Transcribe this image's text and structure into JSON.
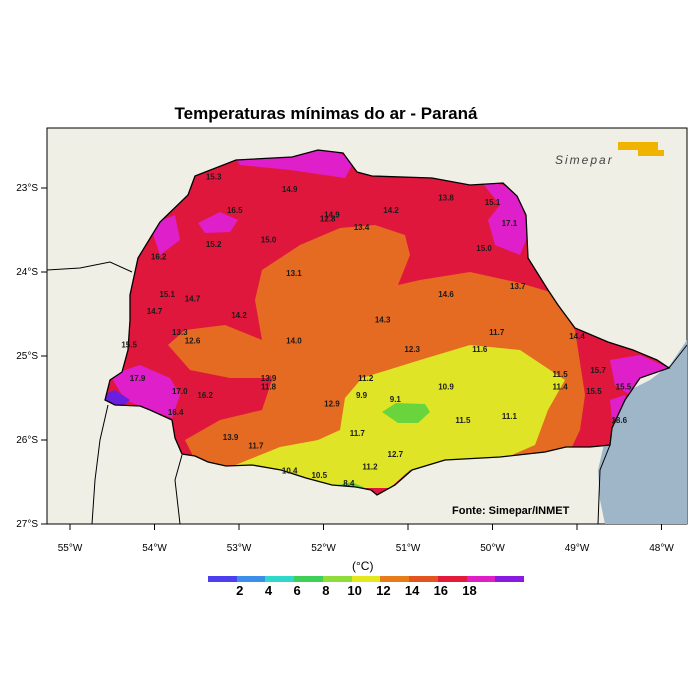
{
  "title": "Temperaturas mínimas do ar - Paraná",
  "brand": "Simepar",
  "source": "Fonte: Simepar/INMET",
  "unit": "(°C)",
  "lon_labels": [
    "55°W",
    "54°W",
    "53°W",
    "52°W",
    "51°W",
    "50°W",
    "49°W",
    "48°W"
  ],
  "lat_labels": [
    "23°S",
    "24°S",
    "25°S",
    "26°S",
    "27°S"
  ],
  "colorbar": {
    "colors": [
      "#4b3ff0",
      "#3c8fe8",
      "#2fd8c8",
      "#3fd05a",
      "#8fdc3a",
      "#e4e81e",
      "#e67c1a",
      "#e3541e",
      "#e31a3a",
      "#e01ec8",
      "#8a1ae0"
    ],
    "labels": [
      "2",
      "4",
      "6",
      "8",
      "10",
      "12",
      "14",
      "16",
      "18"
    ]
  },
  "colors": {
    "red": "#e0173d",
    "orange": "#e56a22",
    "yellow": "#dfe526",
    "green": "#6ad43c",
    "magenta": "#df1fc9",
    "purple": "#6a1ee0",
    "land": "#efefe6",
    "sea": "#9fb6c9"
  },
  "stations": [
    {
      "v": "15.3",
      "lon": -53.3,
      "lat": -22.9
    },
    {
      "v": "14.9",
      "lon": -52.4,
      "lat": -23.05
    },
    {
      "v": "16.5",
      "lon": -53.05,
      "lat": -23.3
    },
    {
      "v": "14.9",
      "lon": -51.9,
      "lat": -23.35
    },
    {
      "v": "12.8",
      "lon": -51.95,
      "lat": -23.4
    },
    {
      "v": "13.4",
      "lon": -51.55,
      "lat": -23.5
    },
    {
      "v": "14.2",
      "lon": -51.2,
      "lat": -23.3
    },
    {
      "v": "13.8",
      "lon": -50.55,
      "lat": -23.15
    },
    {
      "v": "15.1",
      "lon": -50.0,
      "lat": -23.2
    },
    {
      "v": "17.1",
      "lon": -49.8,
      "lat": -23.45
    },
    {
      "v": "15.0",
      "lon": -50.1,
      "lat": -23.75
    },
    {
      "v": "15.2",
      "lon": -53.3,
      "lat": -23.7
    },
    {
      "v": "15.0",
      "lon": -52.65,
      "lat": -23.65
    },
    {
      "v": "16.2",
      "lon": -53.95,
      "lat": -23.85
    },
    {
      "v": "13.1",
      "lon": -52.35,
      "lat": -24.05
    },
    {
      "v": "13.7",
      "lon": -49.7,
      "lat": -24.2
    },
    {
      "v": "15.1",
      "lon": -53.85,
      "lat": -24.3
    },
    {
      "v": "14.7",
      "lon": -53.55,
      "lat": -24.35
    },
    {
      "v": "14.6",
      "lon": -50.55,
      "lat": -24.3
    },
    {
      "v": "14.7",
      "lon": -54.0,
      "lat": -24.5
    },
    {
      "v": "14.2",
      "lon": -53.0,
      "lat": -24.55
    },
    {
      "v": "14.3",
      "lon": -51.3,
      "lat": -24.6
    },
    {
      "v": "13.3",
      "lon": -53.7,
      "lat": -24.75
    },
    {
      "v": "12.6",
      "lon": -53.55,
      "lat": -24.85
    },
    {
      "v": "14.0",
      "lon": -52.35,
      "lat": -24.85
    },
    {
      "v": "11.7",
      "lon": -49.95,
      "lat": -24.75
    },
    {
      "v": "14.4",
      "lon": -49.0,
      "lat": -24.8
    },
    {
      "v": "15.5",
      "lon": -54.3,
      "lat": -24.9
    },
    {
      "v": "12.3",
      "lon": -50.95,
      "lat": -24.95
    },
    {
      "v": "11.6",
      "lon": -50.15,
      "lat": -24.95
    },
    {
      "v": "15.7",
      "lon": -48.75,
      "lat": -25.2
    },
    {
      "v": "17.9",
      "lon": -54.2,
      "lat": -25.3
    },
    {
      "v": "13.9",
      "lon": -52.65,
      "lat": -25.3
    },
    {
      "v": "11.8",
      "lon": -52.65,
      "lat": -25.4
    },
    {
      "v": "11.2",
      "lon": -51.5,
      "lat": -25.3
    },
    {
      "v": "11.5",
      "lon": -49.2,
      "lat": -25.25
    },
    {
      "v": "10.9",
      "lon": -50.55,
      "lat": -25.4
    },
    {
      "v": "11.4",
      "lon": -49.2,
      "lat": -25.4
    },
    {
      "v": "15.5",
      "lon": -48.45,
      "lat": -25.4
    },
    {
      "v": "15.5",
      "lon": -48.8,
      "lat": -25.45
    },
    {
      "v": "17.0",
      "lon": -53.7,
      "lat": -25.45
    },
    {
      "v": "16.2",
      "lon": -53.4,
      "lat": -25.5
    },
    {
      "v": "9.9",
      "lon": -51.55,
      "lat": -25.5
    },
    {
      "v": "9.1",
      "lon": -51.15,
      "lat": -25.55
    },
    {
      "v": "12.9",
      "lon": -51.9,
      "lat": -25.6
    },
    {
      "v": "16.4",
      "lon": -53.75,
      "lat": -25.7
    },
    {
      "v": "11.5",
      "lon": -50.35,
      "lat": -25.8
    },
    {
      "v": "11.1",
      "lon": -49.8,
      "lat": -25.75
    },
    {
      "v": "18.6",
      "lon": -48.5,
      "lat": -25.8
    },
    {
      "v": "13.9",
      "lon": -53.1,
      "lat": -26.0
    },
    {
      "v": "11.7",
      "lon": -51.6,
      "lat": -25.95
    },
    {
      "v": "11.7",
      "lon": -52.8,
      "lat": -26.1
    },
    {
      "v": "12.7",
      "lon": -51.15,
      "lat": -26.2
    },
    {
      "v": "11.2",
      "lon": -51.45,
      "lat": -26.35
    },
    {
      "v": "10.4",
      "lon": -52.4,
      "lat": -26.4
    },
    {
      "v": "10.5",
      "lon": -52.05,
      "lat": -26.45
    },
    {
      "v": "8.4",
      "lon": -51.7,
      "lat": -26.55
    }
  ]
}
